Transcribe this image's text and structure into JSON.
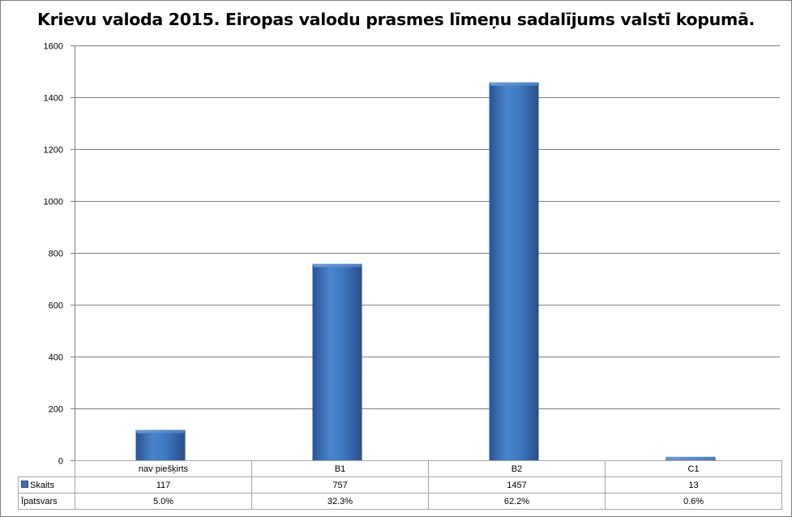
{
  "chart_data": {
    "type": "bar",
    "title": "Krievu valoda 2015. Eiropas valodu prasmes līmeņu sadalījums valstī kopumā.",
    "categories": [
      "nav piešķirts",
      "B1",
      "B2",
      "C1"
    ],
    "series": [
      {
        "name": "Skaits",
        "values": [
          117,
          757,
          1457,
          13
        ],
        "value_labels": [
          "117",
          "757",
          "1457",
          "13"
        ]
      }
    ],
    "table_rows": [
      {
        "name": "Īpatsvars",
        "values": [
          "5.0%",
          "32.3%",
          "62.2%",
          "0.6%"
        ]
      }
    ],
    "ylim": [
      0,
      1600
    ],
    "yticks": [
      0,
      200,
      400,
      600,
      800,
      1000,
      1200,
      1400,
      1600
    ],
    "grid": true,
    "legend_placement": "data-table",
    "colors": {
      "bar": "#3a6fb7",
      "bar_dark": "#274f8c",
      "grid": "#808080"
    }
  }
}
